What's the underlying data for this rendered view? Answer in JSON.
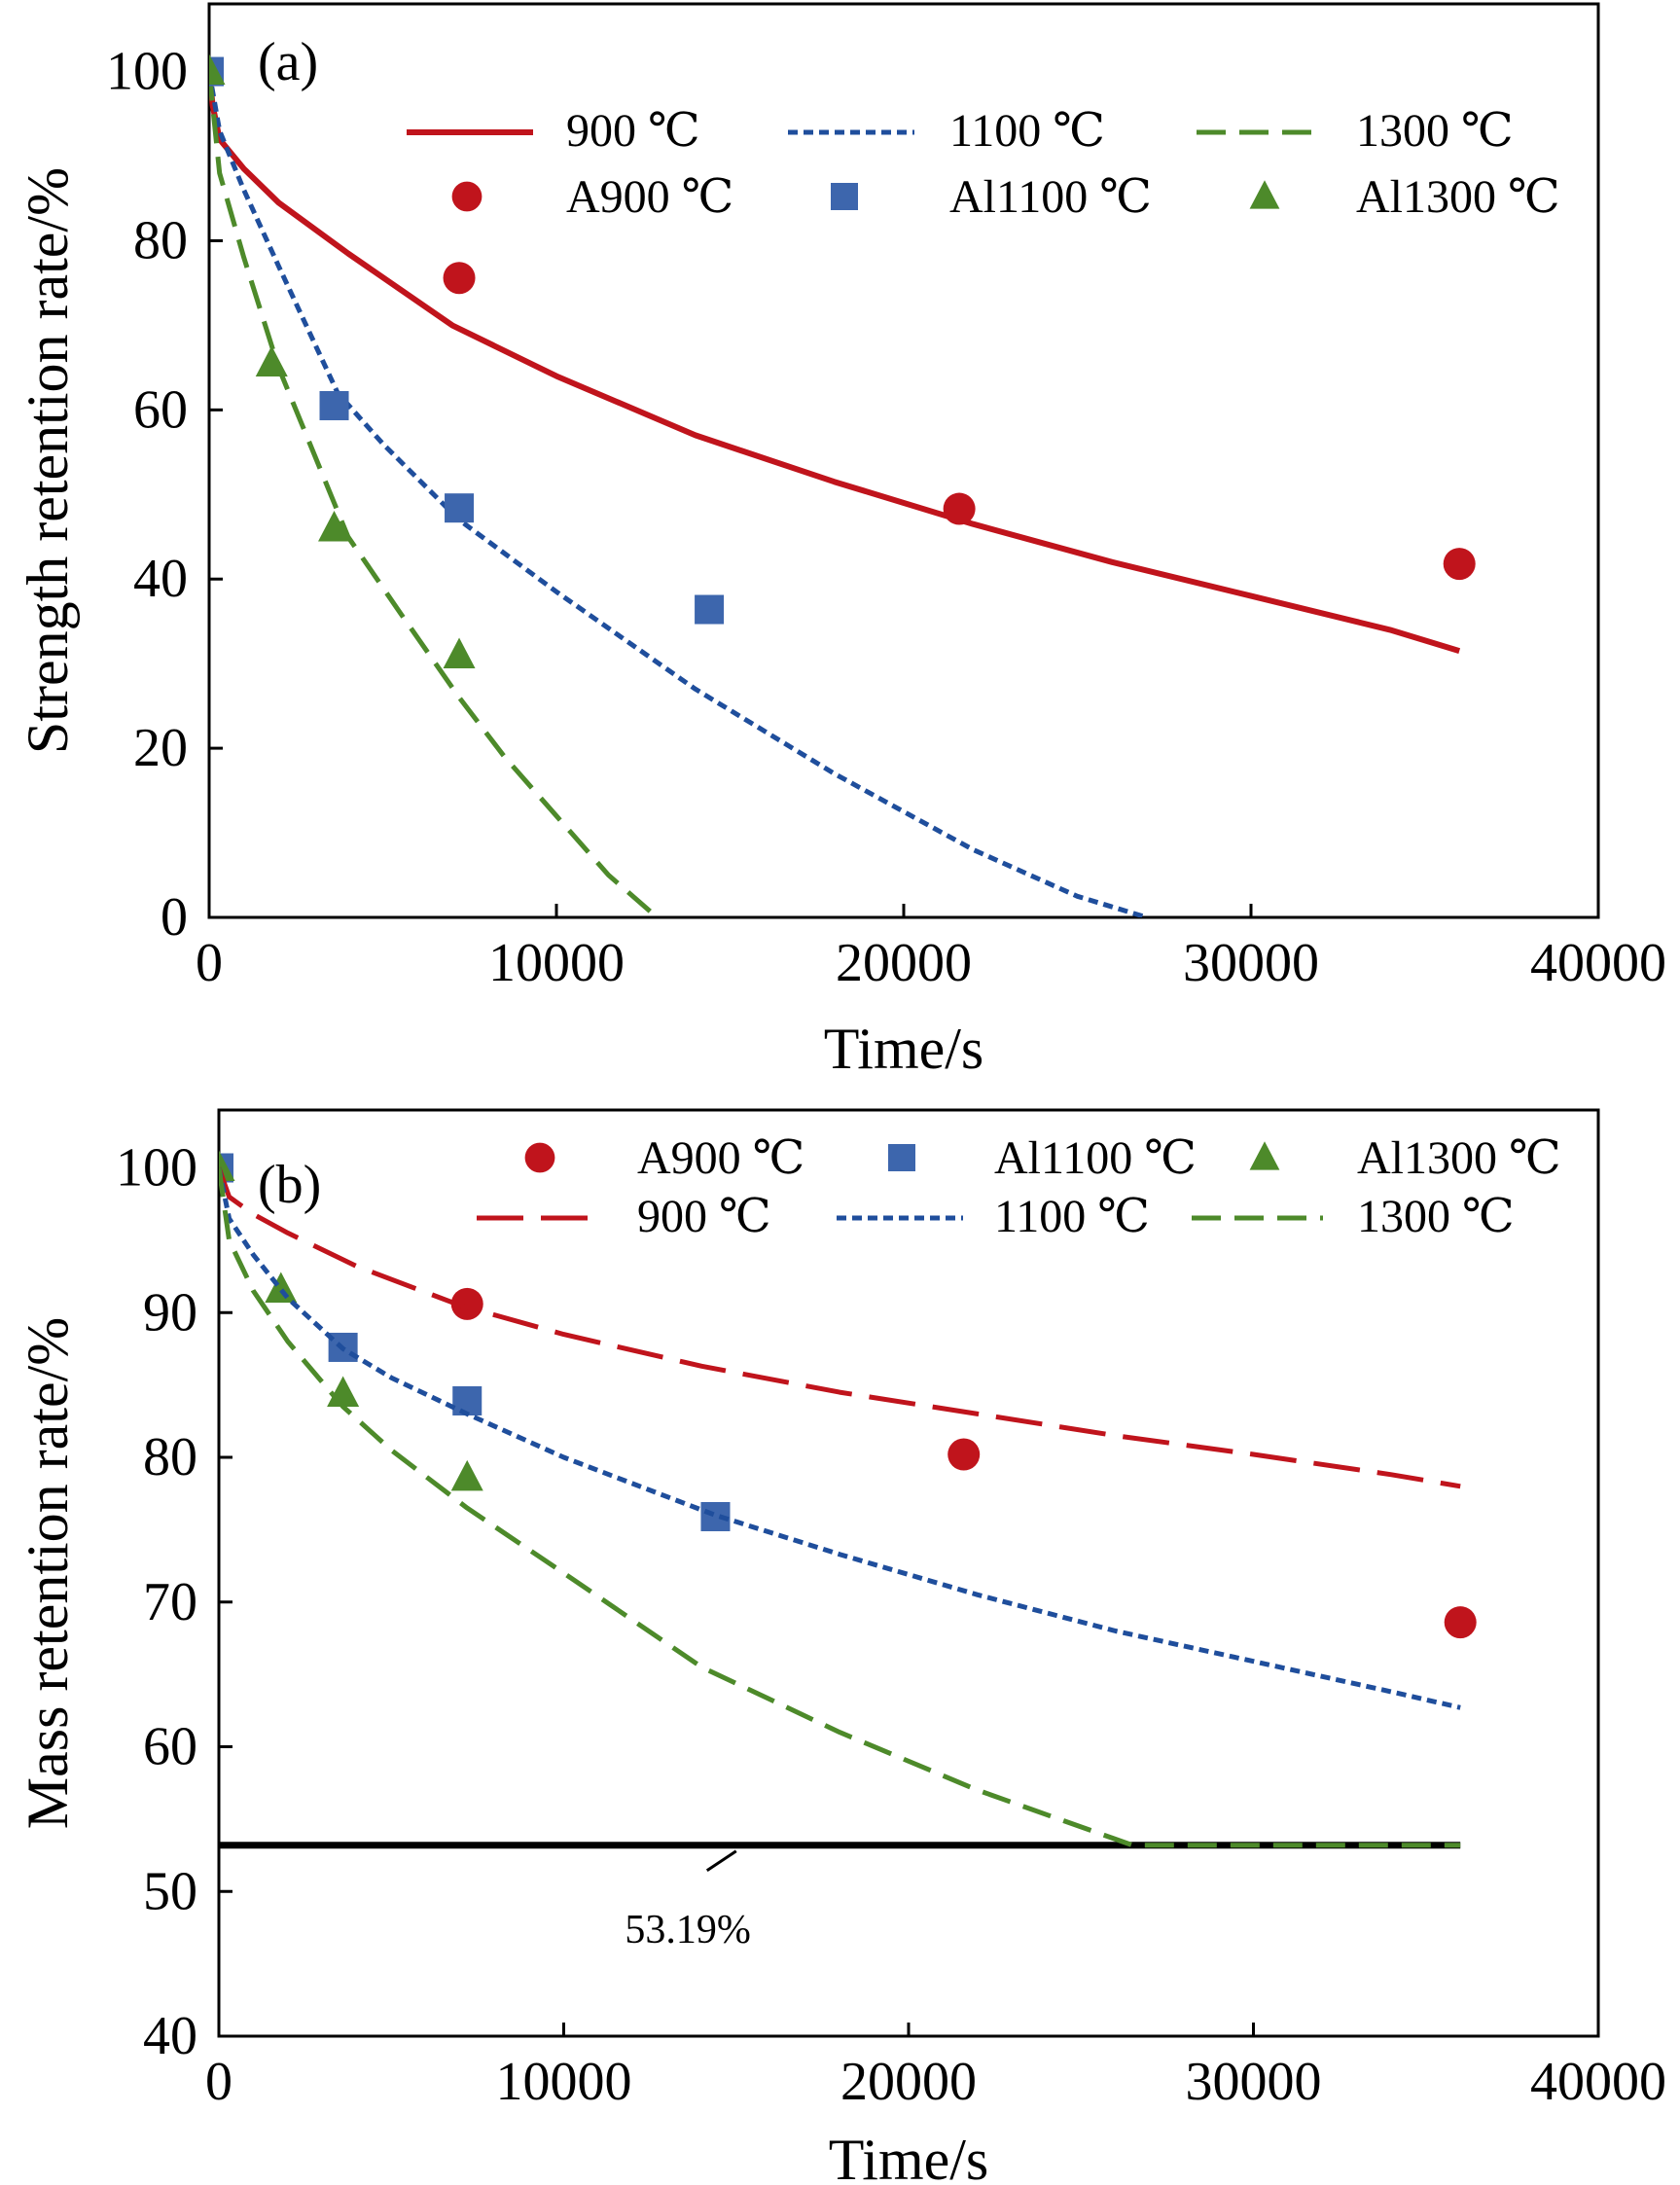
{
  "chart_data": [
    {
      "type": "line",
      "panel_label": "(a)",
      "xlabel": "Time/s",
      "ylabel": "Strength retention rate/%",
      "xlim": [
        0,
        40000
      ],
      "ylim": [
        0,
        108
      ],
      "xticks": [
        0,
        10000,
        20000,
        30000,
        40000
      ],
      "yticks": [
        0,
        20,
        40,
        60,
        80,
        100
      ],
      "grid": false,
      "legend_position": "top",
      "series": [
        {
          "name": "900 ℃",
          "kind": "fit",
          "style": "solid",
          "color": "#c0141c",
          "x": [
            0,
            100,
            300,
            1000,
            2000,
            4000,
            7000,
            10000,
            14000,
            18000,
            22000,
            26000,
            30000,
            34000,
            36000
          ],
          "y": [
            100,
            96,
            92,
            88.5,
            84.5,
            78.5,
            70,
            64,
            57,
            51.5,
            46.5,
            42,
            38,
            34,
            31.5
          ]
        },
        {
          "name": "1100 ℃",
          "kind": "fit",
          "style": "dotted",
          "color": "#1f4e9c",
          "x": [
            0,
            300,
            1000,
            2000,
            3700,
            5000,
            7200,
            10000,
            14000,
            18000,
            22000,
            25000,
            27000
          ],
          "y": [
            100,
            93,
            86,
            77,
            62,
            56,
            47,
            38.5,
            27,
            17,
            8,
            2.5,
            0
          ]
        },
        {
          "name": "1300 ℃",
          "kind": "fit",
          "style": "dashed",
          "color": "#4d8a2a",
          "x": [
            0,
            300,
            1000,
            2000,
            3000,
            4000,
            5500,
            7200,
            8500,
            10000,
            11500,
            12900
          ],
          "y": [
            100,
            88,
            78,
            65,
            55,
            45,
            36,
            26,
            19,
            12,
            5,
            0
          ]
        },
        {
          "name": "A900 ℃",
          "kind": "points",
          "marker": "circle",
          "color": "#c0141c",
          "x": [
            7200,
            21600,
            36000
          ],
          "y": [
            75.6,
            48.3,
            41.8
          ]
        },
        {
          "name": "Al1100 ℃",
          "kind": "points",
          "marker": "square",
          "color": "#3d66ad",
          "x": [
            0,
            3600,
            7200,
            14400
          ],
          "y": [
            100,
            60.5,
            48.4,
            36.4
          ]
        },
        {
          "name": "Al1300 ℃",
          "kind": "points",
          "marker": "triangle",
          "color": "#4d8a2a",
          "x": [
            0,
            1800,
            3600,
            7200
          ],
          "y": [
            100,
            65.5,
            46,
            31
          ]
        }
      ]
    },
    {
      "type": "line",
      "panel_label": "(b)",
      "xlabel": "Time/s",
      "ylabel": "Mass retention rate/%",
      "xlim": [
        0,
        40000
      ],
      "ylim": [
        40,
        104
      ],
      "xticks": [
        0,
        10000,
        20000,
        30000,
        40000
      ],
      "yticks": [
        40,
        50,
        60,
        70,
        80,
        90,
        100
      ],
      "grid": false,
      "legend_position": "top",
      "series": [
        {
          "name": "A900 ℃",
          "kind": "points",
          "marker": "circle",
          "color": "#c0141c",
          "x": [
            7200,
            21600,
            36000
          ],
          "y": [
            90.6,
            80.2,
            68.6
          ]
        },
        {
          "name": "Al1100 ℃",
          "kind": "points",
          "marker": "square",
          "color": "#3d66ad",
          "x": [
            0,
            3600,
            7200,
            14400
          ],
          "y": [
            100,
            87.6,
            83.9,
            75.9
          ]
        },
        {
          "name": "Al1300 ℃",
          "kind": "points",
          "marker": "triangle",
          "color": "#4d8a2a",
          "x": [
            0,
            1800,
            3600,
            7200
          ],
          "y": [
            100,
            91.6,
            84.4,
            78.6
          ]
        },
        {
          "name": "900 ℃",
          "kind": "fit",
          "style": "longdash",
          "color": "#c0141c",
          "x": [
            0,
            300,
            1000,
            2000,
            4000,
            7000,
            10000,
            14000,
            18000,
            22000,
            26000,
            30000,
            34000,
            36000
          ],
          "y": [
            100,
            98,
            96.8,
            95.5,
            93.2,
            90.5,
            88.5,
            86.3,
            84.5,
            83,
            81.5,
            80.2,
            78.8,
            78
          ]
        },
        {
          "name": "1100 ℃",
          "kind": "fit",
          "style": "dotted",
          "color": "#1f4e9c",
          "x": [
            0,
            300,
            1000,
            2000,
            3600,
            5000,
            7200,
            10000,
            14400,
            18000,
            22000,
            26000,
            30000,
            34000,
            36000
          ],
          "y": [
            100,
            96.5,
            94,
            91,
            87.5,
            85.5,
            83,
            80,
            76,
            73.3,
            70.5,
            68,
            65.9,
            63.8,
            62.7
          ]
        },
        {
          "name": "1300 ℃",
          "kind": "fit",
          "style": "dashed",
          "color": "#4d8a2a",
          "x": [
            0,
            300,
            1000,
            2000,
            3600,
            5000,
            7200,
            10000,
            14000,
            18000,
            22000,
            26500,
            30000,
            36000
          ],
          "y": [
            100,
            95,
            91.5,
            88,
            83.5,
            80.5,
            76.5,
            72,
            65.5,
            61,
            57,
            53.19,
            53.19,
            53.19
          ]
        }
      ],
      "reference_line": {
        "y": 53.19,
        "x_start": 0,
        "x_end": 36000,
        "label": "53.19%"
      }
    }
  ]
}
